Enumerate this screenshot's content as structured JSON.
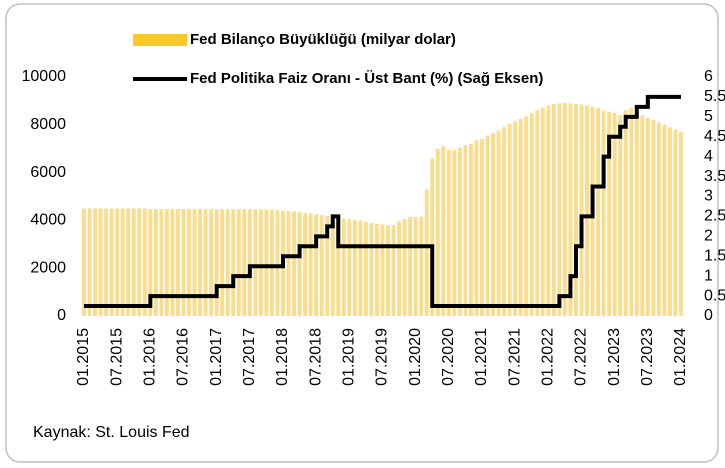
{
  "chart_data": {
    "type": "bar",
    "source": "Kaynak: St. Louis Fed",
    "categories": [
      "01.2015",
      null,
      null,
      null,
      null,
      null,
      "07.2015",
      null,
      null,
      null,
      null,
      null,
      "01.2016",
      null,
      null,
      null,
      null,
      null,
      "07.2016",
      null,
      null,
      null,
      null,
      null,
      "01.2017",
      null,
      null,
      null,
      null,
      null,
      "07.2017",
      null,
      null,
      null,
      null,
      null,
      "01.2018",
      null,
      null,
      null,
      null,
      null,
      "07.2018",
      null,
      null,
      null,
      null,
      null,
      "01.2019",
      null,
      null,
      null,
      null,
      null,
      "07.2019",
      null,
      null,
      null,
      null,
      null,
      "01.2020",
      null,
      null,
      null,
      null,
      null,
      "07.2020",
      null,
      null,
      null,
      null,
      null,
      "01.2021",
      null,
      null,
      null,
      null,
      null,
      "07.2021",
      null,
      null,
      null,
      null,
      null,
      "01.2022",
      null,
      null,
      null,
      null,
      null,
      "07.2022",
      null,
      null,
      null,
      null,
      null,
      "01.2023",
      null,
      null,
      null,
      null,
      null,
      "07.2023",
      null,
      null,
      null,
      null,
      null,
      "01.2024"
    ],
    "series": [
      {
        "name": "Fed Bilanço Büyüklüğü (milyar dolar)",
        "type": "bar",
        "color": "#f9dc8c",
        "legend_color": "#fcc82a",
        "values": [
          4500,
          4500,
          4500,
          4500,
          4500,
          4500,
          4500,
          4500,
          4500,
          4500,
          4500,
          4500,
          4480,
          4480,
          4480,
          4480,
          4480,
          4480,
          4480,
          4480,
          4480,
          4480,
          4480,
          4480,
          4470,
          4470,
          4470,
          4470,
          4470,
          4470,
          4470,
          4470,
          4470,
          4460,
          4450,
          4430,
          4400,
          4390,
          4380,
          4350,
          4320,
          4290,
          4250,
          4220,
          4180,
          4140,
          4110,
          4080,
          4050,
          4020,
          3980,
          3930,
          3900,
          3860,
          3830,
          3800,
          3800,
          3950,
          4050,
          4150,
          4150,
          4160,
          5300,
          6600,
          7000,
          7100,
          6950,
          6950,
          7050,
          7150,
          7200,
          7350,
          7400,
          7550,
          7650,
          7750,
          7900,
          8050,
          8150,
          8250,
          8350,
          8500,
          8600,
          8700,
          8800,
          8870,
          8900,
          8920,
          8900,
          8880,
          8850,
          8800,
          8750,
          8700,
          8600,
          8550,
          8500,
          8400,
          8600,
          8700,
          8500,
          8400,
          8300,
          8200,
          8100,
          8000,
          7900,
          7800,
          7700
        ]
      },
      {
        "name": "Fed Politika Faiz Oranı - Üst Bant (%) (Sağ Eksen)",
        "type": "line",
        "axis": "y2",
        "color": "#000000",
        "values": [
          0.25,
          0.25,
          0.25,
          0.25,
          0.25,
          0.25,
          0.25,
          0.25,
          0.25,
          0.25,
          0.25,
          0.25,
          0.5,
          0.5,
          0.5,
          0.5,
          0.5,
          0.5,
          0.5,
          0.5,
          0.5,
          0.5,
          0.5,
          0.5,
          0.75,
          0.75,
          0.75,
          1.0,
          1.0,
          1.0,
          1.25,
          1.25,
          1.25,
          1.25,
          1.25,
          1.25,
          1.5,
          1.5,
          1.5,
          1.75,
          1.75,
          1.75,
          2.0,
          2.0,
          2.25,
          2.5,
          1.75,
          1.75,
          1.75,
          1.75,
          1.75,
          1.75,
          1.75,
          1.75,
          1.75,
          1.75,
          1.75,
          1.75,
          1.75,
          1.75,
          1.75,
          1.75,
          1.75,
          0.25,
          0.25,
          0.25,
          0.25,
          0.25,
          0.25,
          0.25,
          0.25,
          0.25,
          0.25,
          0.25,
          0.25,
          0.25,
          0.25,
          0.25,
          0.25,
          0.25,
          0.25,
          0.25,
          0.25,
          0.25,
          0.25,
          0.25,
          0.5,
          0.5,
          1.0,
          1.75,
          2.5,
          2.5,
          3.25,
          3.25,
          4.0,
          4.5,
          4.5,
          4.75,
          5.0,
          5.0,
          5.25,
          5.25,
          5.5,
          5.5,
          5.5,
          5.5,
          5.5,
          5.5,
          5.5
        ]
      }
    ],
    "ylim": [
      0,
      10000
    ],
    "yticks": [
      0,
      2000,
      4000,
      6000,
      8000,
      10000
    ],
    "y2lim": [
      0,
      6
    ],
    "y2ticks": [
      0,
      0.5,
      1,
      1.5,
      2,
      2.5,
      3,
      3.5,
      4,
      4.5,
      5,
      5.5,
      6
    ],
    "grid": false
  }
}
